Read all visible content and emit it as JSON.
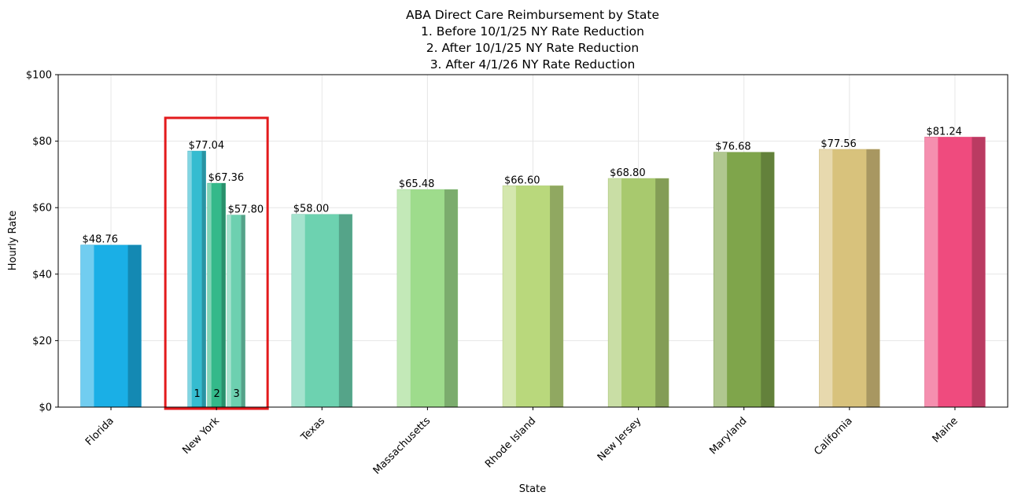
{
  "chart_data": {
    "type": "bar",
    "title_lines": [
      "ABA Direct Care Reimbursement by State",
      "1. Before 10/1/25 NY Rate Reduction",
      "2. After 10/1/25 NY Rate Reduction",
      "3. After 4/1/26 NY Rate Reduction"
    ],
    "xlabel": "State",
    "ylabel": "Hourly Rate",
    "ylim": [
      0,
      100
    ],
    "yticks": [
      0,
      20,
      40,
      60,
      80,
      100
    ],
    "ytick_labels": [
      "$0",
      "$20",
      "$40",
      "$60",
      "$80",
      "$100"
    ],
    "grid": true,
    "highlight_box_color": "#e31a1c",
    "ny_sub_labels": [
      "1",
      "2",
      "3"
    ],
    "bars": [
      {
        "state": "Florida",
        "values": [
          48.76
        ],
        "labels": [
          "$48.76"
        ],
        "colors": [
          "#1aafe6"
        ]
      },
      {
        "state": "New York",
        "values": [
          77.04,
          67.36,
          57.8
        ],
        "labels": [
          "$77.04",
          "$67.36",
          "$57.80"
        ],
        "colors": [
          "#35bcd0",
          "#34b98a",
          "#6dd0b0"
        ],
        "highlighted": true
      },
      {
        "state": "Texas",
        "values": [
          58.0
        ],
        "labels": [
          "$58.00"
        ],
        "colors": [
          "#6dd2b0"
        ]
      },
      {
        "state": "Massachusetts",
        "values": [
          65.48
        ],
        "labels": [
          "$65.48"
        ],
        "colors": [
          "#9edc8c"
        ]
      },
      {
        "state": "Rhode Island",
        "values": [
          66.6
        ],
        "labels": [
          "$66.60"
        ],
        "colors": [
          "#b9d87c"
        ]
      },
      {
        "state": "New Jersey",
        "values": [
          68.8
        ],
        "labels": [
          "$68.80"
        ],
        "colors": [
          "#a8c96e"
        ]
      },
      {
        "state": "Maryland",
        "values": [
          76.68
        ],
        "labels": [
          "$76.68"
        ],
        "colors": [
          "#7fa54b"
        ]
      },
      {
        "state": "California",
        "values": [
          77.56
        ],
        "labels": [
          "$77.56"
        ],
        "colors": [
          "#d8c27c"
        ]
      },
      {
        "state": "Maine",
        "values": [
          81.24
        ],
        "labels": [
          "$81.24"
        ],
        "colors": [
          "#ef4b7e"
        ]
      }
    ]
  }
}
